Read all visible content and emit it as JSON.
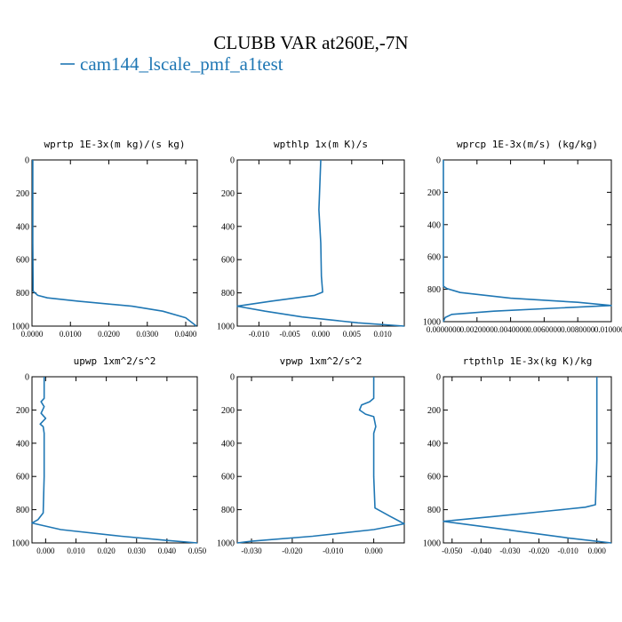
{
  "title": "CLUBB VAR at260E,-7N",
  "legend": "cam144_lscale_pmf_a1test",
  "series_color": "#1f77b4",
  "chart_data": [
    {
      "type": "line",
      "title": "wprtp  1E-3x(m kg)/(s kg)",
      "xlim": [
        0,
        0.043
      ],
      "xticks": [
        0,
        0.01,
        0.02,
        0.03,
        0.04
      ],
      "xticklabels": [
        "0.0000",
        "0.0100",
        "0.0200",
        "0.0300",
        "0.0400"
      ],
      "ylim": [
        1000,
        0
      ],
      "yticks": [
        0,
        200,
        400,
        600,
        800,
        1000
      ],
      "yticklabels": [
        "0",
        "200",
        "400",
        "600",
        "800",
        "1000"
      ],
      "series": [
        {
          "x": [
            0.0002,
            0.0002,
            0.0003,
            0.0015,
            0.004,
            0.012,
            0.026,
            0.034,
            0.04,
            0.0428
          ],
          "y": [
            0,
            500,
            790,
            815,
            830,
            850,
            880,
            910,
            950,
            1000
          ]
        }
      ]
    },
    {
      "type": "line",
      "title": "wpthlp  1x(m K)/s",
      "xlim": [
        -0.0135,
        0.0135
      ],
      "xticks": [
        -0.01,
        -0.005,
        0,
        0.005,
        0.01
      ],
      "xticklabels": [
        "-0.010",
        "-0.005",
        "0.000",
        "0.005",
        "0.010"
      ],
      "ylim": [
        1000,
        0
      ],
      "yticks": [
        0,
        200,
        400,
        600,
        800,
        1000
      ],
      "yticklabels": [
        "0",
        "200",
        "400",
        "600",
        "800",
        "1000"
      ],
      "series": [
        {
          "x": [
            0.0,
            -0.0001,
            -0.0003,
            0.0,
            0.0001,
            0.0003,
            -0.001,
            -0.008,
            -0.0135,
            -0.009,
            -0.003,
            0.006,
            0.0135
          ],
          "y": [
            0,
            100,
            300,
            500,
            700,
            795,
            815,
            850,
            880,
            910,
            945,
            980,
            1000
          ]
        }
      ]
    },
    {
      "type": "line",
      "title": "wprcp  1E-3x(m/s) (kg/kg)",
      "xlim": [
        0,
        0.01
      ],
      "xticks": [
        0,
        0.002,
        0.004,
        0.006,
        0.008,
        0.01
      ],
      "xticklabels": [
        "0.0000000",
        "0.0020000",
        "0.0040000",
        "0.0060000",
        "0.0080000",
        "0.0100000"
      ],
      "ylim": [
        1000,
        0
      ],
      "yticks": [
        0,
        200,
        400,
        600,
        800,
        1000
      ],
      "yticklabels": [
        "0",
        "200",
        "400",
        "600",
        "800",
        "1000"
      ],
      "series": [
        {
          "x": [
            0,
            0,
            0.0002,
            0.001,
            0.004,
            0.008,
            0.01,
            0.007,
            0.003,
            0.0005,
            0.0001,
            0
          ],
          "y": [
            0,
            780,
            795,
            820,
            855,
            880,
            900,
            915,
            935,
            955,
            975,
            1000
          ]
        }
      ]
    },
    {
      "type": "line",
      "title": "upwp  1xm^2/s^2",
      "xlim": [
        -0.0045,
        0.05
      ],
      "xticks": [
        0,
        0.01,
        0.02,
        0.03,
        0.04,
        0.05
      ],
      "xticklabels": [
        "0.000",
        "0.010",
        "0.020",
        "0.030",
        "0.040",
        "0.050"
      ],
      "ylim": [
        1000,
        0
      ],
      "yticks": [
        0,
        200,
        400,
        600,
        800,
        1000
      ],
      "yticklabels": [
        "0",
        "200",
        "400",
        "600",
        "800",
        "1000"
      ],
      "series": [
        {
          "x": [
            -0.0005,
            -0.0005,
            -0.0015,
            -0.0005,
            -0.0015,
            0.0,
            -0.0018,
            -0.0008,
            -0.0005,
            -0.0005,
            -0.0008,
            -0.0025,
            -0.0045,
            0.005,
            0.025,
            0.04,
            0.05
          ],
          "y": [
            0,
            130,
            150,
            180,
            220,
            250,
            285,
            300,
            340,
            600,
            820,
            860,
            880,
            920,
            960,
            985,
            1000
          ]
        }
      ]
    },
    {
      "type": "line",
      "title": "vpwp  1xm^2/s^2",
      "xlim": [
        -0.0335,
        0.0075
      ],
      "xticks": [
        -0.03,
        -0.02,
        -0.01,
        0
      ],
      "xticklabels": [
        "-0.030",
        "-0.020",
        "-0.010",
        "0.000"
      ],
      "ylim": [
        1000,
        0
      ],
      "yticks": [
        0,
        200,
        400,
        600,
        800,
        1000
      ],
      "yticklabels": [
        "0",
        "200",
        "400",
        "600",
        "800",
        "1000"
      ],
      "series": [
        {
          "x": [
            0.0,
            0.0,
            -0.001,
            -0.003,
            -0.0035,
            -0.002,
            0.0,
            0.0005,
            0.0,
            0.0,
            0.0003,
            0.004,
            0.0075,
            0.0,
            -0.015,
            -0.03,
            -0.0335
          ],
          "y": [
            0,
            130,
            150,
            170,
            200,
            225,
            240,
            300,
            340,
            600,
            790,
            840,
            885,
            920,
            960,
            990,
            1000
          ]
        }
      ]
    },
    {
      "type": "line",
      "title": "rtpthlp  1E-3x(kg K)/kg",
      "xlim": [
        -0.053,
        0.005
      ],
      "xticks": [
        -0.05,
        -0.04,
        -0.03,
        -0.02,
        -0.01,
        0
      ],
      "xticklabels": [
        "-0.050",
        "-0.040",
        "-0.030",
        "-0.020",
        "-0.010",
        "0.000"
      ],
      "ylim": [
        1000,
        0
      ],
      "yticks": [
        0,
        200,
        400,
        600,
        800,
        1000
      ],
      "yticklabels": [
        "0",
        "200",
        "400",
        "600",
        "800",
        "1000"
      ],
      "series": [
        {
          "x": [
            0.0,
            0.0,
            -0.0005,
            -0.004,
            -0.015,
            -0.035,
            -0.053,
            -0.04,
            -0.025,
            -0.01,
            0.005
          ],
          "y": [
            0,
            500,
            770,
            785,
            805,
            840,
            870,
            900,
            935,
            970,
            1000
          ]
        }
      ]
    }
  ]
}
